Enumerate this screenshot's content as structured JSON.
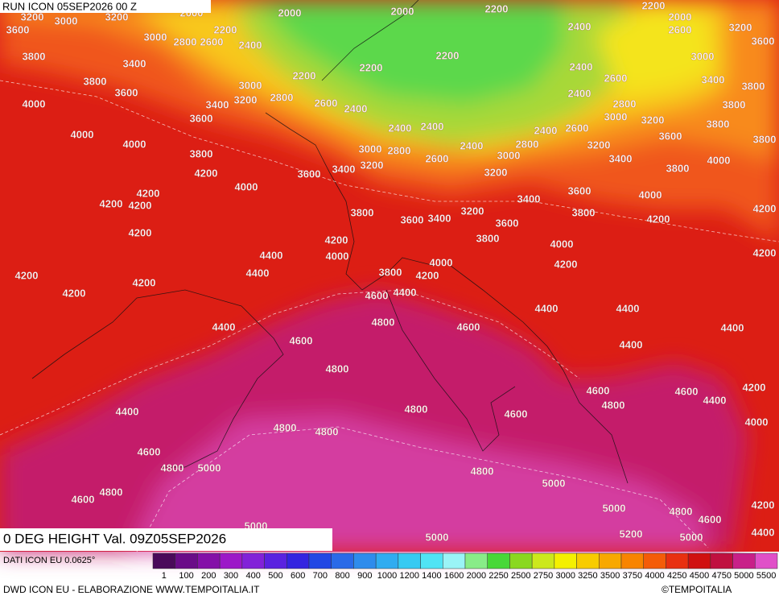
{
  "header": {
    "run": "RUN ICON 05SEP2026 00 Z"
  },
  "map": {
    "title": "0 DEG HEIGHT Val. 09Z05SEP2026",
    "contour_labels": [
      3200,
      3000,
      3200,
      2000,
      2000,
      2000,
      2200,
      2200,
      2000,
      3600,
      3000,
      2800,
      2600,
      2200,
      2400,
      2400,
      2600,
      3200,
      3600,
      3800,
      3400,
      2200,
      2200,
      2400,
      3000,
      3800,
      3600,
      3000,
      2200,
      3400,
      3800,
      2600,
      4000,
      3400,
      3200,
      2800,
      2600,
      2400,
      2400,
      2800,
      3800,
      3600,
      3000,
      3200,
      3800,
      4000,
      2400,
      2400,
      2400,
      2600,
      3600,
      3800,
      4000,
      3800,
      3000,
      2800,
      2400,
      2800,
      3200,
      3000,
      2600,
      3400,
      4000,
      3200,
      4200,
      3600,
      3400,
      3200,
      3800,
      4200,
      4000,
      3600,
      3400,
      4000,
      4200,
      4200,
      4200,
      3800,
      3600,
      3400,
      3200,
      3600,
      3800,
      4200,
      4200,
      3800,
      4200,
      4000,
      4400,
      4000,
      4000,
      4200,
      4200,
      4400,
      3800,
      4200,
      4200,
      4200,
      4200,
      4600,
      4400,
      4400,
      4400,
      4400,
      4800,
      4600,
      4400,
      4600,
      4400,
      4800,
      4600,
      4600,
      4800,
      4400,
      4200,
      4400,
      4800,
      4600,
      4000,
      4800,
      4800,
      4600,
      4800,
      5000,
      4800,
      5000,
      4800,
      4600,
      5000,
      4800,
      4600,
      4200,
      5000,
      5000,
      5200,
      5000,
      4400
    ]
  },
  "legend": {
    "source": "DATI ICON EU 0.0625°",
    "items": [
      {
        "label": "1",
        "color": "#4a0a5a"
      },
      {
        "label": "100",
        "color": "#6a0c88"
      },
      {
        "label": "200",
        "color": "#8410a8"
      },
      {
        "label": "300",
        "color": "#9c18c8"
      },
      {
        "label": "400",
        "color": "#8222d8"
      },
      {
        "label": "500",
        "color": "#5a22e0"
      },
      {
        "label": "600",
        "color": "#3424e0"
      },
      {
        "label": "700",
        "color": "#2248e4"
      },
      {
        "label": "800",
        "color": "#2a6ae8"
      },
      {
        "label": "900",
        "color": "#2e8cec"
      },
      {
        "label": "1000",
        "color": "#30acf0"
      },
      {
        "label": "1200",
        "color": "#36caf2"
      },
      {
        "label": "1400",
        "color": "#50e4f4"
      },
      {
        "label": "1600",
        "color": "#9af4f6"
      },
      {
        "label": "2000",
        "color": "#88ec88"
      },
      {
        "label": "2250",
        "color": "#48d838"
      },
      {
        "label": "2500",
        "color": "#8ad820"
      },
      {
        "label": "2750",
        "color": "#cce81c"
      },
      {
        "label": "3000",
        "color": "#f4f000"
      },
      {
        "label": "3250",
        "color": "#f8cc00"
      },
      {
        "label": "3500",
        "color": "#f8a800"
      },
      {
        "label": "3750",
        "color": "#f88400"
      },
      {
        "label": "4000",
        "color": "#f45c08"
      },
      {
        "label": "4250",
        "color": "#e83010"
      },
      {
        "label": "4500",
        "color": "#d01010"
      },
      {
        "label": "4750",
        "color": "#c01040"
      },
      {
        "label": "5000",
        "color": "#c82088"
      },
      {
        "label": "5500",
        "color": "#e050c8"
      }
    ]
  },
  "footer": {
    "credit": "DWD ICON EU - ELABORAZIONE WWW.TEMPOITALIA.IT",
    "copyright": "©TEMPOITALIA"
  }
}
